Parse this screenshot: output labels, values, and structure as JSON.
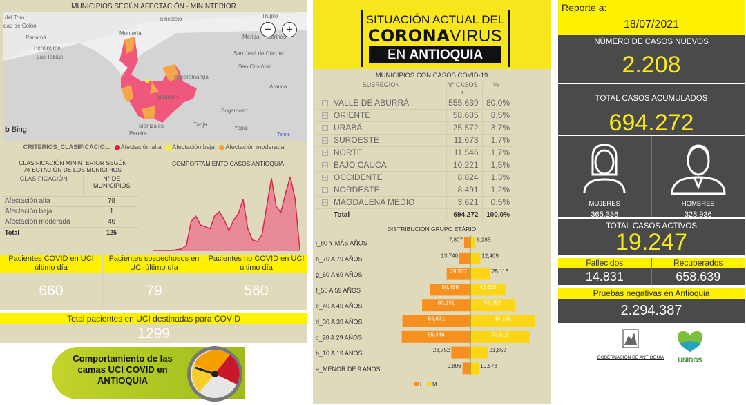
{
  "left": {
    "map_title": "MUNICIPIOS SEGÚN AFECTACIÓN - MININTERIOR",
    "map_labels": [
      "del Toro",
      "dad de Colón",
      "Panamá",
      "Penonomé",
      "Las Tablas",
      "Montería",
      "Sincelejo",
      "Trujillo",
      "Mérida",
      "Barinas",
      "San José de Cúcuta",
      "San Cristóbal",
      "Bucaramanga",
      "Arauca",
      "Medellín",
      "Sogamoso",
      "Tunja",
      "Yopal",
      "Manizales",
      "Pereira"
    ],
    "bing": "Bing",
    "terms": "Terms",
    "zoom_out": "−",
    "zoom_in": "+",
    "legend": {
      "label": "CRITERIOS_CLASIFICACIO...",
      "items": [
        {
          "label": "Afectación alta",
          "color": "#e8124f"
        },
        {
          "label": "Afectación baja",
          "color": "#f5ee2a"
        },
        {
          "label": "Afectación moderada",
          "color": "#f5a031"
        }
      ]
    },
    "class_table": {
      "title": "CLASIFICACIÓN MININTERIOR SEGÚN AFECTACIÓN DE LOS MUNICIPIOS",
      "headers": [
        "CLASIFICACIÓN",
        "N° DE MUNICIPIOS"
      ],
      "rows": [
        [
          "Afectación alta",
          "78"
        ],
        [
          "Afectación baja",
          "1"
        ],
        [
          "Afectación moderada",
          "46"
        ]
      ],
      "total": [
        "Total",
        "125"
      ]
    },
    "trend_title": "COMPORTAMIENTO CASOS ANTIOQUIA",
    "uci": [
      {
        "label": "Pacientes COVID en UCI último día",
        "value": "660"
      },
      {
        "label": "Pacientes sospechosos en UCI último día",
        "value": "79"
      },
      {
        "label": "Pacientes no COVID en UCI último día",
        "value": "560"
      }
    ],
    "uci_total": {
      "label": "Total pacientes en UCI destinadas para COVID",
      "value": "1299"
    },
    "banner": "Comportamiento de las camas UCI COVID en ANTIOQUIA"
  },
  "mid": {
    "header": {
      "line1": "SITUACIÓN ACTUAL DEL",
      "line2a": "CORONA",
      "line2b": "VIRUS",
      "line3a": "EN ",
      "line3b": "ANTIOQUIA"
    },
    "table": {
      "title": "MUNICIPIOS CON CASOS COVID-19",
      "headers": [
        "SUBREGION",
        "N° CASOS",
        "%"
      ],
      "rows": [
        [
          "VALLE DE ABURRÁ",
          "555.639",
          "80,0%"
        ],
        [
          "ORIENTE",
          "58.685",
          "8,5%"
        ],
        [
          "URABÁ",
          "25.572",
          "3,7%"
        ],
        [
          "SUROESTE",
          "11.673",
          "1,7%"
        ],
        [
          "NORTE",
          "11.546",
          "1,7%"
        ],
        [
          "BAJO CAUCA",
          "10.221",
          "1,5%"
        ],
        [
          "OCCIDENTE",
          "8.824",
          "1,3%"
        ],
        [
          "NORDESTE",
          "8.491",
          "1,2%"
        ],
        [
          "MAGDALENA MEDIO",
          "3.621",
          "0,5%"
        ]
      ],
      "total": [
        "Total",
        "694.272",
        "100,0%"
      ]
    }
  },
  "chart_data": [
    {
      "type": "bar",
      "orientation": "horizontal-pyramid",
      "title": "DISTRIBUCIÓN GRUPO ETÁRIO",
      "categories": [
        "i_80 Y MÁS AÑOS",
        "h_70 A 79 AÑOS",
        "g_60 A 69 AÑOS",
        "f_50 A 59 AÑOS",
        "e_40 A 49 AÑOS",
        "d_30 A 39 AÑOS",
        "c_20 A 29 AÑOS",
        "b_10 A 19 AÑOS",
        "a_MENOR DE 9 AÑOS"
      ],
      "series": [
        {
          "name": "F",
          "color": "#f7901e",
          "values": [
            7807,
            13740,
            29507,
            50456,
            60151,
            84671,
            85446,
            23752,
            9806
          ],
          "labels": [
            "7,807",
            "13,740",
            "29,507",
            "50,456",
            "60,151",
            "84,671",
            "85,446",
            "23,752",
            "9,806"
          ]
        },
        {
          "name": "M",
          "color": "#fcd615",
          "values": [
            6285,
            12409,
            25116,
            43620,
            55052,
            80106,
            73918,
            21852,
            10578
          ],
          "labels": [
            "6,285",
            "12,409",
            "25,116",
            "43,620",
            "55,052",
            "80,106",
            "73,918",
            "21,852",
            "10,578"
          ]
        }
      ],
      "legend": "bottom"
    },
    {
      "type": "area",
      "title": "COMPORTAMIENTO CASOS ANTIOQUIA",
      "color": "#e05a6e",
      "values": [
        1,
        1,
        1,
        1,
        1,
        2,
        3,
        8,
        40,
        47,
        35,
        33,
        30,
        48,
        53,
        42,
        27,
        42,
        50,
        70,
        30,
        15,
        13,
        22,
        60,
        98,
        60,
        52,
        78,
        100,
        70,
        2
      ]
    }
  ],
  "right": {
    "report_label": "Reporte a:",
    "report_date": "18/07/2021",
    "new_cases": {
      "label": "NÚMERO DE CASOS NUEVOS",
      "value": "2.208"
    },
    "total_cases": {
      "label": "TOTAL CASOS ACUMULADOS",
      "value": "694.272"
    },
    "women": {
      "label": "MUJERES",
      "value": "365.336"
    },
    "men": {
      "label": "HOMBRES",
      "value": "328.936"
    },
    "active": {
      "label": "TOTAL CASOS ACTIVOS",
      "value": "19.247"
    },
    "deaths": {
      "label": "Fallecidos",
      "value": "14.831"
    },
    "recovered": {
      "label": "Recuperados",
      "value": "658.639"
    },
    "negative": {
      "label": "Pruebas negativas en Antioquia",
      "value": "2.294.387"
    },
    "logo_gob": "GOBERNACIÓN DE ANTIOQUIA",
    "logo_unidos": "UNIDOS"
  },
  "colors": {
    "yellow": "#fff200",
    "dark": "#4a4a4a",
    "beige": "#e0dabd",
    "accent_yellow": "#f7ea1c"
  }
}
